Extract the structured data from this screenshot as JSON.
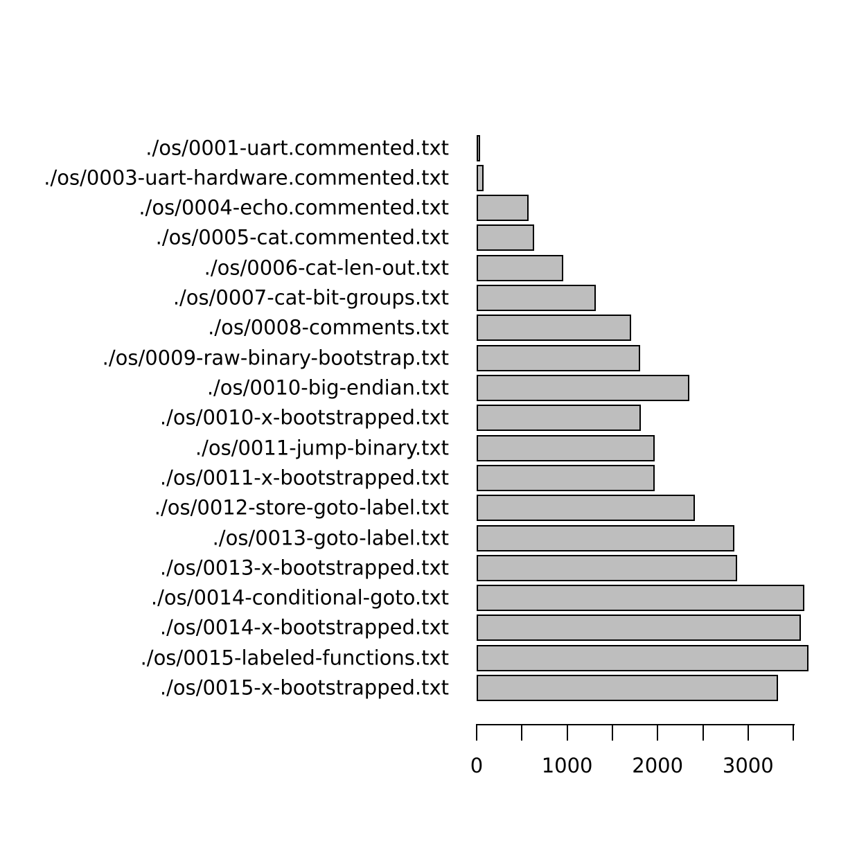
{
  "chart_data": {
    "type": "bar",
    "orientation": "horizontal",
    "title": "",
    "xlabel": "",
    "ylabel": "",
    "categories": [
      "./os/0001-uart.commented.txt",
      "./os/0003-uart-hardware.commented.txt",
      "./os/0004-echo.commented.txt",
      "./os/0005-cat.commented.txt",
      "./os/0006-cat-len-out.txt",
      "./os/0007-cat-bit-groups.txt",
      "./os/0008-comments.txt",
      "./os/0009-raw-binary-bootstrap.txt",
      "./os/0010-big-endian.txt",
      "./os/0010-x-bootstrapped.txt",
      "./os/0011-jump-binary.txt",
      "./os/0011-x-bootstrapped.txt",
      "./os/0012-store-goto-label.txt",
      "./os/0013-goto-label.txt",
      "./os/0013-x-bootstrapped.txt",
      "./os/0014-conditional-goto.txt",
      "./os/0014-x-bootstrapped.txt",
      "./os/0015-labeled-functions.txt",
      "./os/0015-x-bootstrapped.txt"
    ],
    "values": [
      40,
      75,
      575,
      635,
      960,
      1315,
      1710,
      1810,
      2350,
      1815,
      1970,
      1970,
      2410,
      2850,
      2880,
      3620,
      3585,
      3665,
      3330
    ],
    "xlim": [
      0,
      3500
    ],
    "x_axis": {
      "ticks": [
        0,
        500,
        1000,
        1500,
        2000,
        2500,
        3000,
        3500
      ],
      "labeled_ticks": [
        {
          "value": 0,
          "label": "0"
        },
        {
          "value": 1000,
          "label": "1000"
        },
        {
          "value": 2000,
          "label": "2000"
        },
        {
          "value": 3000,
          "label": "3000"
        }
      ]
    },
    "grid": false,
    "legend_position": "none",
    "colors": {
      "bar_fill": "#BEBEBE",
      "bar_border": "#000000",
      "axis": "#000000",
      "text": "#000000",
      "background": "#FFFFFF"
    }
  }
}
